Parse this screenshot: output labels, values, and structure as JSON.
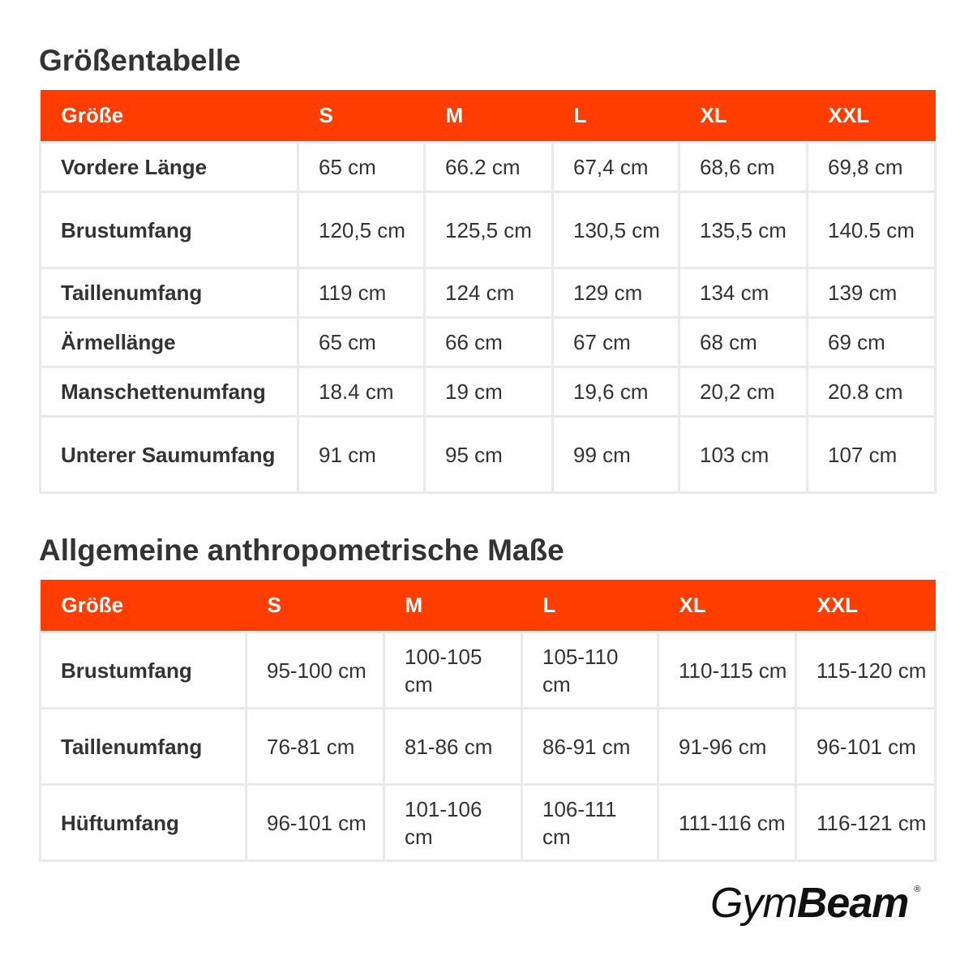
{
  "size_chart": {
    "title": "Größentabelle",
    "header": [
      "Größe",
      "S",
      "M",
      "L",
      "XL",
      "XXL"
    ],
    "rows": [
      {
        "label": "Vordere Länge",
        "values": [
          "65 cm",
          "66.2 cm",
          "67,4 cm",
          "68,6 cm",
          "69,8 cm"
        ]
      },
      {
        "label": "Brustumfang",
        "values": [
          "120,5 cm",
          "125,5 cm",
          "130,5 cm",
          "135,5 cm",
          "140.5 cm"
        ]
      },
      {
        "label": "Taillenumfang",
        "values": [
          "119 cm",
          "124 cm",
          "129 cm",
          "134 cm",
          "139 cm"
        ]
      },
      {
        "label": "Ärmellänge",
        "values": [
          "65 cm",
          "66 cm",
          "67 cm",
          "68 cm",
          "69 cm"
        ]
      },
      {
        "label": "Manschettenumfang",
        "values": [
          "18.4 cm",
          "19 cm",
          "19,6 cm",
          "20,2 cm",
          "20.8 cm"
        ]
      },
      {
        "label": "Unterer Saumumfang",
        "values": [
          "91 cm",
          "95 cm",
          "99 cm",
          "103 cm",
          "107 cm"
        ]
      }
    ]
  },
  "body_measurements": {
    "title": "Allgemeine anthropometrische Maße",
    "header": [
      "Größe",
      "S",
      "M",
      "L",
      "XL",
      "XXL"
    ],
    "rows": [
      {
        "label": "Brustumfang",
        "values": [
          "95-100 cm",
          "100-105 cm",
          "105-110 cm",
          "110-115 cm",
          "115-120 cm"
        ]
      },
      {
        "label": "Taillenumfang",
        "values": [
          "76-81 cm",
          "81-86 cm",
          "86-91 cm",
          "91-96 cm",
          "96-101 cm"
        ]
      },
      {
        "label": "Hüftumfang",
        "values": [
          "96-101 cm",
          "101-106 cm",
          "106-111 cm",
          "111-116 cm",
          "116-121 cm"
        ]
      }
    ]
  },
  "logo": {
    "text_light": "Gym",
    "text_bold": "Beam",
    "registered": "®"
  },
  "colors": {
    "header_bg": "#ff3d00",
    "header_text": "#ffffff",
    "body_text": "#333333",
    "grid_line": "#e9e9e9"
  }
}
